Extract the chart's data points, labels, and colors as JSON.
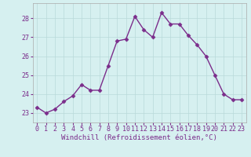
{
  "x": [
    0,
    1,
    2,
    3,
    4,
    5,
    6,
    7,
    8,
    9,
    10,
    11,
    12,
    13,
    14,
    15,
    16,
    17,
    18,
    19,
    20,
    21,
    22,
    23
  ],
  "y": [
    23.3,
    23.0,
    23.2,
    23.6,
    23.9,
    24.5,
    24.2,
    24.2,
    25.5,
    26.8,
    26.9,
    28.1,
    27.4,
    27.0,
    28.3,
    27.7,
    27.7,
    27.1,
    26.6,
    26.0,
    25.0,
    24.0,
    23.7,
    23.7
  ],
  "line_color": "#7b2d8b",
  "marker": "D",
  "marker_size": 2.5,
  "bg_color": "#d6f0f0",
  "grid_color": "#b8dada",
  "xlabel": "Windchill (Refroidissement éolien,°C)",
  "ylabel": "",
  "ylim": [
    22.5,
    28.8
  ],
  "xlim": [
    -0.5,
    23.5
  ],
  "yticks": [
    23,
    24,
    25,
    26,
    27,
    28
  ],
  "xticks": [
    0,
    1,
    2,
    3,
    4,
    5,
    6,
    7,
    8,
    9,
    10,
    11,
    12,
    13,
    14,
    15,
    16,
    17,
    18,
    19,
    20,
    21,
    22,
    23
  ],
  "label_color": "#7b2d8b",
  "tick_color": "#7b2d8b",
  "label_fontsize": 6.5,
  "tick_fontsize": 6.0,
  "linewidth": 1.0
}
